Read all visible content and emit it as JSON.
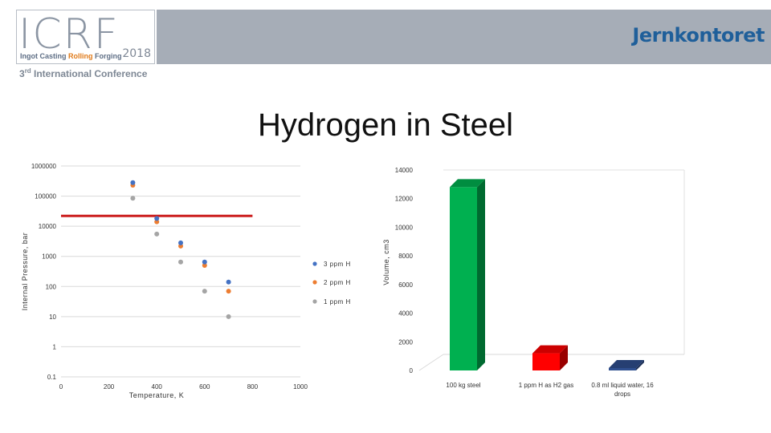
{
  "header": {
    "logo_letters": "ICRF",
    "logo_year": "2018",
    "logo_tagline": {
      "p1": "Ingot Casting ",
      "p2": "Rolling",
      "p3": " Forging"
    },
    "conference": "3rd International Conference",
    "conference_parts": {
      "num": "3",
      "sup": "rd",
      "rest": " International Conference"
    },
    "brand": "Jernkontoret",
    "colors": {
      "banner": "#a6adb7",
      "brand": "#1f5f9a",
      "accent": "#e07b1a"
    }
  },
  "slide": {
    "title": "Hydrogen in Steel"
  },
  "chart_data": [
    {
      "type": "scatter",
      "xlabel": "Temperature, K",
      "ylabel": "Internal Pressure, bar",
      "xlim": [
        0,
        1000
      ],
      "xticks": [
        "0",
        "200",
        "400",
        "600",
        "800",
        "1000"
      ],
      "yscale": "log",
      "ylim": [
        0.1,
        1000000
      ],
      "yticks": [
        "0.1",
        "1",
        "10",
        "100",
        "1000",
        "10000",
        "100000",
        "1000000"
      ],
      "grid": "horizontal",
      "legend_position": "right",
      "series": [
        {
          "name": "3 ppm H",
          "color": "#4472c4",
          "x": [
            300,
            400,
            500,
            600,
            700
          ],
          "y": [
            280000,
            18000,
            2800,
            650,
            140
          ]
        },
        {
          "name": "2 ppm H",
          "color": "#ed7d31",
          "x": [
            300,
            400,
            500,
            600,
            700
          ],
          "y": [
            230000,
            14000,
            2200,
            500,
            70
          ]
        },
        {
          "name": "1 ppm H",
          "color": "#a5a5a5",
          "x": [
            300,
            400,
            500,
            600,
            700
          ],
          "y": [
            85000,
            5500,
            650,
            70,
            10
          ]
        }
      ],
      "reference_line": {
        "y": 22000,
        "x_range": [
          0,
          800
        ],
        "color": "#cc1f1f"
      }
    },
    {
      "type": "bar",
      "ylabel": "Volume, cm3",
      "ylim": [
        0,
        14000
      ],
      "yticks": [
        "0",
        "2000",
        "4000",
        "6000",
        "8000",
        "10000",
        "12000",
        "14000"
      ],
      "categories": [
        "100 kg steel",
        "1 ppm H as H2 gas",
        "0.8 ml liquid water, 16 drops"
      ],
      "values": [
        12800,
        1200,
        0.8
      ],
      "colors": [
        "#00b050",
        "#ff0000",
        "#2f4f8f"
      ]
    }
  ]
}
